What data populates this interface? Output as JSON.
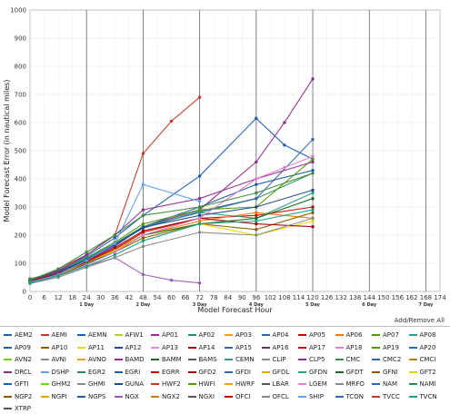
{
  "chart_data": {
    "type": "line",
    "xlabel": "Model Forecast Hour",
    "ylabel": "Model Forecast Error (in nautical miles)",
    "xlim": [
      0,
      174
    ],
    "ylim": [
      0,
      1000
    ],
    "xticks": [
      0,
      6,
      12,
      18,
      24,
      30,
      36,
      42,
      48,
      54,
      60,
      66,
      72,
      78,
      84,
      90,
      96,
      102,
      108,
      114,
      120,
      126,
      132,
      138,
      144,
      150,
      156,
      162,
      168,
      174
    ],
    "yticks": [
      0,
      100,
      200,
      300,
      400,
      500,
      600,
      700,
      800,
      900,
      1000
    ],
    "grid": true,
    "day_markers": [
      {
        "hour": 24,
        "label": "1 Day"
      },
      {
        "hour": 48,
        "label": "2 Day"
      },
      {
        "hour": 72,
        "label": "3 Day"
      },
      {
        "hour": 96,
        "label": "4 Day"
      },
      {
        "hour": 120,
        "label": "5 Day"
      },
      {
        "hour": 144,
        "label": "6 Day"
      },
      {
        "hour": 168,
        "label": "7 Day"
      }
    ],
    "series": [
      {
        "name": "AEM2",
        "color": "#1f5fa8",
        "x": [
          0,
          12,
          24,
          36,
          48,
          72,
          96,
          120
        ],
        "values": [
          45,
          70,
          120,
          170,
          230,
          300,
          380,
          430
        ]
      },
      {
        "name": "AEMI",
        "color": "#c0392b",
        "x": [
          0,
          12,
          24,
          36,
          48,
          60,
          72
        ],
        "values": [
          35,
          80,
          130,
          200,
          490,
          605,
          690
        ]
      },
      {
        "name": "AEMN",
        "color": "#1a5fb4",
        "x": [
          0,
          12,
          24,
          36,
          48,
          72,
          96,
          108,
          120
        ],
        "values": [
          40,
          75,
          125,
          190,
          270,
          410,
          615,
          520,
          470
        ]
      },
      {
        "name": "AFW1",
        "color": "#b7c934",
        "x": [
          0,
          12,
          24,
          36,
          48
        ],
        "values": [
          30,
          60,
          100,
          150,
          210
        ]
      },
      {
        "name": "AP01",
        "color": "#8e2b8c",
        "x": [
          0,
          12,
          24,
          36,
          48,
          72,
          96,
          108,
          120
        ],
        "values": [
          38,
          65,
          110,
          160,
          230,
          290,
          460,
          600,
          755
        ]
      },
      {
        "name": "AP02",
        "color": "#2e8b57",
        "x": [
          0,
          12,
          24,
          36,
          48,
          72,
          96,
          120
        ],
        "values": [
          42,
          70,
          115,
          170,
          230,
          280,
          330,
          420
        ]
      },
      {
        "name": "AP03",
        "color": "#e5a50a",
        "x": [
          0,
          12,
          24,
          36,
          48,
          72
        ],
        "values": [
          30,
          55,
          100,
          150,
          200,
          260
        ]
      },
      {
        "name": "AP04",
        "color": "#3465a4",
        "x": [
          0,
          12,
          24,
          36,
          48,
          72,
          96,
          120
        ],
        "values": [
          40,
          68,
          112,
          165,
          225,
          285,
          330,
          540
        ]
      },
      {
        "name": "AP05",
        "color": "#cc0000",
        "x": [
          0,
          12,
          24,
          36,
          48,
          72,
          96,
          120
        ],
        "values": [
          36,
          62,
          105,
          150,
          210,
          260,
          270,
          300
        ]
      },
      {
        "name": "AP06",
        "color": "#f57900",
        "x": [
          0,
          12,
          24,
          36,
          48,
          72,
          96,
          120
        ],
        "values": [
          34,
          60,
          100,
          145,
          200,
          250,
          280,
          260
        ]
      },
      {
        "name": "AP07",
        "color": "#4e9a06",
        "x": [
          0,
          12,
          24,
          36,
          48,
          72,
          96,
          120
        ],
        "values": [
          44,
          72,
          120,
          175,
          240,
          290,
          300,
          470
        ]
      },
      {
        "name": "AP08",
        "color": "#2a9d8f",
        "x": [
          0,
          12,
          24,
          36,
          48,
          72,
          96,
          120
        ],
        "values": [
          40,
          70,
          118,
          168,
          230,
          280,
          260,
          350
        ]
      },
      {
        "name": "AP10",
        "color": "#8f5902",
        "x": [
          0,
          12,
          24,
          36,
          48,
          72,
          96,
          120
        ],
        "values": [
          32,
          58,
          98,
          140,
          190,
          240,
          220,
          280
        ]
      },
      {
        "name": "AP11",
        "color": "#edd400",
        "x": [
          0,
          12,
          24,
          36,
          48,
          72,
          96,
          120
        ],
        "values": [
          33,
          60,
          100,
          145,
          200,
          240,
          200,
          250
        ]
      },
      {
        "name": "AP12",
        "color": "#204a87",
        "x": [
          0,
          12,
          24,
          36,
          48,
          72,
          96,
          120
        ],
        "values": [
          41,
          69,
          114,
          166,
          228,
          270,
          300,
          360
        ]
      },
      {
        "name": "AP14",
        "color": "#a40000",
        "x": [
          0,
          12,
          24,
          36,
          48,
          72,
          96,
          120
        ],
        "values": [
          37,
          63,
          108,
          155,
          215,
          260,
          240,
          230
        ]
      },
      {
        "name": "CLP5",
        "color": "#8f2b8c",
        "x": [
          0,
          12,
          24,
          36,
          48,
          72,
          96,
          120
        ],
        "values": [
          40,
          72,
          130,
          200,
          290,
          330,
          400,
          460
        ]
      },
      {
        "name": "GFDT",
        "color": "#1f6a1f",
        "x": [
          0,
          12,
          24,
          36,
          48,
          72,
          96,
          120
        ],
        "values": [
          30,
          55,
          100,
          140,
          200,
          240,
          260,
          330
        ]
      },
      {
        "name": "LGEM",
        "color": "#e07ed6",
        "x": [
          0,
          12,
          24,
          36,
          48,
          72,
          96,
          108,
          120
        ],
        "values": [
          30,
          55,
          95,
          140,
          200,
          260,
          400,
          440,
          480
        ]
      },
      {
        "name": "NGX",
        "color": "#9b59b6",
        "x": [
          0,
          12,
          24,
          36,
          48,
          60,
          72
        ],
        "values": [
          35,
          55,
          90,
          120,
          60,
          40,
          30
        ]
      },
      {
        "name": "SHIP",
        "color": "#62a0ea",
        "x": [
          0,
          12,
          24,
          36,
          48,
          72
        ],
        "values": [
          32,
          60,
          110,
          170,
          380,
          320
        ]
      },
      {
        "name": "CMC",
        "color": "#3d8b3d",
        "x": [
          0,
          12,
          24,
          36,
          48,
          72,
          96,
          120
        ],
        "values": [
          40,
          80,
          140,
          200,
          270,
          300,
          350,
          420
        ]
      },
      {
        "name": "OFCL",
        "color": "#888a85",
        "x": [
          0,
          12,
          24,
          36,
          48,
          72,
          96,
          120
        ],
        "values": [
          28,
          50,
          85,
          120,
          160,
          210,
          200,
          260
        ]
      },
      {
        "name": "TVCN",
        "color": "#16a085",
        "x": [
          0,
          12,
          24,
          36,
          48,
          72,
          96,
          120
        ],
        "values": [
          30,
          55,
          90,
          130,
          180,
          240,
          250,
          290
        ]
      }
    ]
  },
  "controls": {
    "add_remove": "Add/Remove All"
  },
  "legend": {
    "items": [
      {
        "name": "AEM2",
        "color": "#1f5fa8"
      },
      {
        "name": "AEMI",
        "color": "#c0392b"
      },
      {
        "name": "AEMN",
        "color": "#1a5fb4"
      },
      {
        "name": "AFW1",
        "color": "#b7c934"
      },
      {
        "name": "AP01",
        "color": "#8e2b8c"
      },
      {
        "name": "AP02",
        "color": "#2e8b57"
      },
      {
        "name": "AP03",
        "color": "#e5a50a"
      },
      {
        "name": "AP04",
        "color": "#3465a4"
      },
      {
        "name": "AP05",
        "color": "#cc0000"
      },
      {
        "name": "AP06",
        "color": "#f57900"
      },
      {
        "name": "AP07",
        "color": "#4e9a06"
      },
      {
        "name": "AP08",
        "color": "#2a9d8f"
      },
      {
        "name": "AP09",
        "color": "#1f5fa8"
      },
      {
        "name": "AP10",
        "color": "#8f5902"
      },
      {
        "name": "AP11",
        "color": "#edd400"
      },
      {
        "name": "AP12",
        "color": "#204a87"
      },
      {
        "name": "AP13",
        "color": "#d98ad8"
      },
      {
        "name": "AP14",
        "color": "#a40000"
      },
      {
        "name": "AP15",
        "color": "#3465a4"
      },
      {
        "name": "AP16",
        "color": "#5c3566"
      },
      {
        "name": "AP17",
        "color": "#cc0000"
      },
      {
        "name": "AP18",
        "color": "#e07ed6"
      },
      {
        "name": "AP19",
        "color": "#4e9a06"
      },
      {
        "name": "AP20",
        "color": "#2a6fb4"
      },
      {
        "name": "AVN2",
        "color": "#73d216"
      },
      {
        "name": "AVNI",
        "color": "#888a85"
      },
      {
        "name": "AVNO",
        "color": "#e5a50a"
      },
      {
        "name": "BAMD",
        "color": "#8f2b8c"
      },
      {
        "name": "BAMM",
        "color": "#1f6a1f"
      },
      {
        "name": "BAMS",
        "color": "#555753"
      },
      {
        "name": "CEMN",
        "color": "#2a9d8f"
      },
      {
        "name": "CLIP",
        "color": "#888a85"
      },
      {
        "name": "CLP5",
        "color": "#8f2b8c"
      },
      {
        "name": "CMC",
        "color": "#3d8b3d"
      },
      {
        "name": "CMC2",
        "color": "#3465a4"
      },
      {
        "name": "CMCI",
        "color": "#c17d11"
      },
      {
        "name": "DRCL",
        "color": "#8e2b8c"
      },
      {
        "name": "DSHP",
        "color": "#62a0ea"
      },
      {
        "name": "EGR2",
        "color": "#2e8b57"
      },
      {
        "name": "EGRI",
        "color": "#1a5fb4"
      },
      {
        "name": "EGRR",
        "color": "#cc0000"
      },
      {
        "name": "GFD2",
        "color": "#a40000"
      },
      {
        "name": "GFDI",
        "color": "#3465a4"
      },
      {
        "name": "GFDL",
        "color": "#e5a50a"
      },
      {
        "name": "GFDN",
        "color": "#2a9d8f"
      },
      {
        "name": "GFDT",
        "color": "#1f6a1f"
      },
      {
        "name": "GFNI",
        "color": "#8f5902"
      },
      {
        "name": "GFT2",
        "color": "#edd400"
      },
      {
        "name": "GFTI",
        "color": "#1a5fb4"
      },
      {
        "name": "GHM2",
        "color": "#73d216"
      },
      {
        "name": "GHMI",
        "color": "#888a85"
      },
      {
        "name": "GUNA",
        "color": "#204a87"
      },
      {
        "name": "HWF2",
        "color": "#c0392b"
      },
      {
        "name": "HWFI",
        "color": "#4e9a06"
      },
      {
        "name": "HWRF",
        "color": "#e5a50a"
      },
      {
        "name": "LBAR",
        "color": "#555753"
      },
      {
        "name": "LGEM",
        "color": "#e07ed6"
      },
      {
        "name": "MRFO",
        "color": "#888a85"
      },
      {
        "name": "NAM",
        "color": "#3465a4"
      },
      {
        "name": "NAMI",
        "color": "#2e8b57"
      },
      {
        "name": "NGP2",
        "color": "#8f5902"
      },
      {
        "name": "NGPI",
        "color": "#e5a50a"
      },
      {
        "name": "NGPS",
        "color": "#1f5fa8"
      },
      {
        "name": "NGX",
        "color": "#9b59b6"
      },
      {
        "name": "NGX2",
        "color": "#c17d11"
      },
      {
        "name": "NGXI",
        "color": "#555753"
      },
      {
        "name": "OFCI",
        "color": "#cc0000"
      },
      {
        "name": "OFCL",
        "color": "#888a85"
      },
      {
        "name": "SHIP",
        "color": "#62a0ea"
      },
      {
        "name": "TCON",
        "color": "#2a6fb4"
      },
      {
        "name": "TVCC",
        "color": "#c0392b"
      },
      {
        "name": "TVCN",
        "color": "#16a085"
      },
      {
        "name": "XTRP",
        "color": "#555753"
      }
    ]
  }
}
